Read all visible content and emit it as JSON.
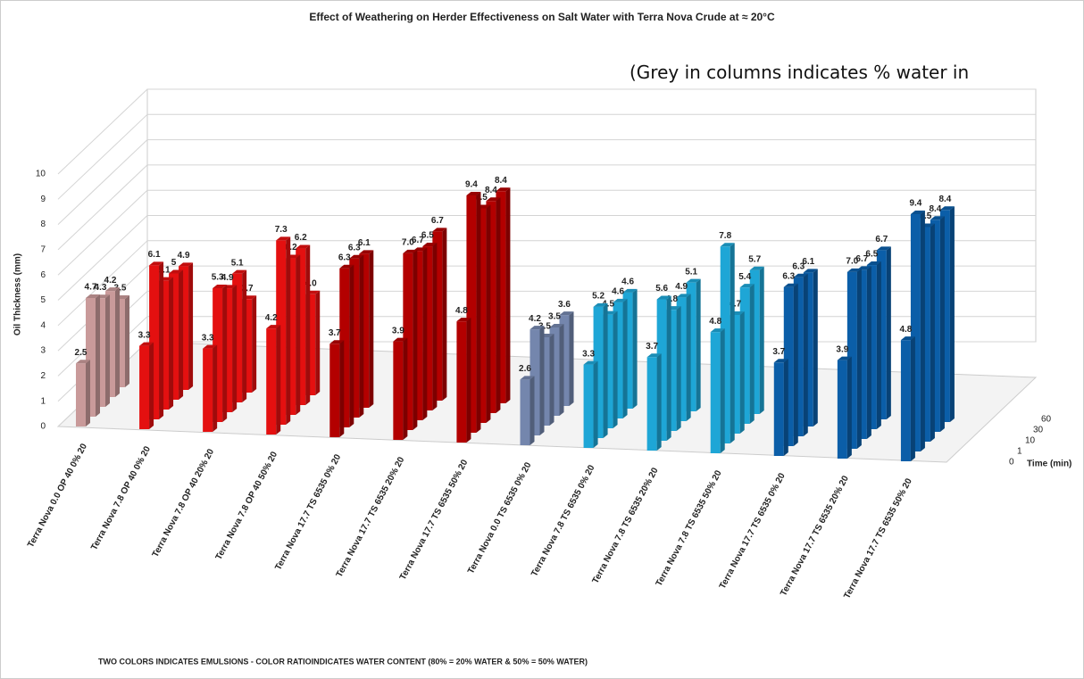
{
  "chart_data": {
    "type": "bar3d",
    "title": "Effect of Weathering on Herder Effectiveness on Salt Water with Terra Nova Crude at ≈ 20°C",
    "annotation": "(Grey in columns indicates % water in emulsion)",
    "footnote": "TWO COLORS INDICATES EMULSIONS - COLOR RATIOINDICATES WATER CONTENT (80% = 20% WATER & 50% = 50% WATER)",
    "y_label": "Oil Thickness (mm)",
    "depth_label": "Time (min)",
    "categories": [
      "Terra Nova 0.0 OP 40 0% 20",
      "Terra Nova 7.8 OP 40 0% 20",
      "Terra Nova 7.8 OP 40 20% 20",
      "Terra Nova 7.8 OP 40 50% 20",
      "Terra Nova 17.7 TS 6535 0% 20",
      "Terra Nova 17.7 TS 6535 20% 20",
      "Terra Nova 17.7 TS 6535 50% 20",
      "Terra Nova 0.0 TS 6535 0% 20",
      "Terra Nova 7.8 TS 6535 0% 20",
      "Terra Nova 7.8 TS 6535 20% 20",
      "Terra Nova 7.8 TS 6535 50% 20",
      "Terra Nova 17.7 TS 6535 0% 20",
      "Terra Nova 17.7 TS 6535 20% 20",
      "Terra Nova 17.7 TS 6535 50% 20"
    ],
    "category_colors": [
      "#c99a9a",
      "#e41010",
      "#e41010",
      "#e41010",
      "#b30000",
      "#b30000",
      "#b30000",
      "#7486ad",
      "#1ea6d6",
      "#1ea6d6",
      "#1ea6d6",
      "#0b5ea8",
      "#0b5ea8",
      "#0b5ea8"
    ],
    "series": [
      {
        "name": "0",
        "values": [
          2.5,
          3.3,
          3.3,
          4.2,
          3.7,
          3.9,
          4.8,
          2.6,
          3.3,
          3.7,
          4.8,
          3.7,
          3.9,
          4.8
        ]
      },
      {
        "name": "1",
        "values": [
          4.7,
          6.1,
          5.3,
          7.3,
          6.3,
          7.0,
          9.4,
          4.2,
          5.2,
          5.6,
          7.8,
          6.3,
          7.0,
          9.4
        ],
        "value_labels": [
          "4.7",
          "6.1",
          "5.3",
          "7.3",
          "6.3",
          "7.0",
          "9.4",
          "4.2",
          "5.2",
          "5.6",
          "7.8",
          "6.3",
          "7.0",
          "9.4"
        ]
      },
      {
        "name": "10",
        "values": [
          4.3,
          5.1,
          4.9,
          6.2,
          6.3,
          6.7,
          8.5,
          3.5,
          4.5,
          4.8,
          4.7,
          6.3,
          6.7,
          8.5
        ]
      },
      {
        "name": "30",
        "values": [
          4.2,
          5.0,
          5.1,
          6.2,
          6.1,
          6.5,
          8.4,
          3.5,
          4.6,
          4.9,
          5.4,
          6.1,
          6.5,
          8.4
        ]
      },
      {
        "name": "60",
        "values": [
          3.5,
          4.9,
          3.7,
          4.0,
          null,
          6.7,
          8.4,
          3.6,
          4.6,
          5.1,
          5.7,
          null,
          6.7,
          8.4
        ],
        "value_labels": [
          "3.5",
          "4.9",
          "3.7",
          "4.0",
          null,
          "6.7",
          "8.4",
          "3.6",
          "4.6",
          "5.1",
          "5.7",
          null,
          "6.7",
          "8.4"
        ]
      }
    ],
    "ylim": [
      0,
      10
    ],
    "yticks": [
      0,
      1,
      2,
      3,
      4,
      5,
      6,
      7,
      8,
      9,
      10
    ],
    "grid": true
  }
}
